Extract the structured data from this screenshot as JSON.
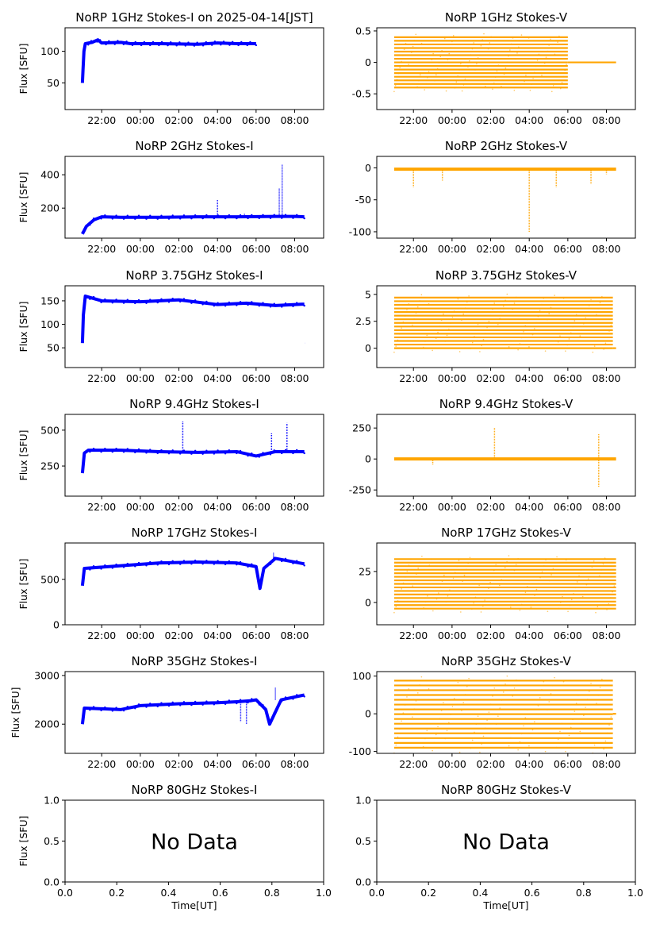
{
  "figure": {
    "colors": {
      "stokes_i": "#0000ff",
      "stokes_v": "#ffa500",
      "axis": "#000000",
      "background": "#ffffff"
    }
  },
  "chart_data": [
    {
      "type": "scatter",
      "title": "NoRP 1GHz Stokes-I on 2025-04-14[JST]",
      "ylabel": "Flux [SFU]",
      "xlabel": "",
      "series": [
        {
          "color": "#0000ff",
          "x_range": [
            "2025-04-13T21:00",
            "2025-04-14T06:00"
          ],
          "values": [
            [
              0,
              50
            ],
            [
              0.03,
              70
            ],
            [
              0.08,
              100
            ],
            [
              0.15,
              112
            ],
            [
              0.5,
              114
            ],
            [
              0.8,
              118
            ],
            [
              1,
              113
            ],
            [
              2,
              114
            ],
            [
              2.5,
              112
            ],
            [
              4,
              112
            ],
            [
              6,
              111
            ],
            [
              7,
              113
            ],
            [
              8,
              112
            ],
            [
              8.8,
              112
            ],
            [
              9,
              112
            ]
          ]
        }
      ],
      "xlim": [
        "2025-04-13T20:06",
        "2025-04-14T09:30"
      ],
      "ylim": [
        8,
        137
      ],
      "x_ticks": [
        "22:00",
        "00:00",
        "02:00",
        "04:00",
        "06:00",
        "08:00"
      ],
      "y_ticks": [
        50,
        100
      ]
    },
    {
      "type": "scatter",
      "title": "NoRP 1GHz Stokes-V",
      "xlabel": "",
      "series": [
        {
          "color": "#ffa500",
          "x_range": [
            "2025-04-13T21:00",
            "2025-04-14T08:30"
          ],
          "band": {
            "x_end": "2025-04-14T06:00",
            "low": -0.4,
            "high": 0.4,
            "then": 0.0
          }
        }
      ],
      "xlim": [
        "2025-04-13T20:06",
        "2025-04-14T09:30"
      ],
      "ylim": [
        -0.75,
        0.55
      ],
      "x_ticks": [
        "22:00",
        "00:00",
        "02:00",
        "04:00",
        "06:00",
        "08:00"
      ],
      "y_ticks": [
        0.5,
        0.0,
        -0.5
      ]
    },
    {
      "type": "scatter",
      "title": "NoRP 2GHz Stokes-I",
      "ylabel": "Flux [SFU]",
      "xlabel": "",
      "series": [
        {
          "color": "#0000ff",
          "x_range": [
            "2025-04-13T21:00",
            "2025-04-14T08:30"
          ],
          "values": [
            [
              0,
              45
            ],
            [
              0.2,
              90
            ],
            [
              0.6,
              130
            ],
            [
              1,
              148
            ],
            [
              2,
              145
            ],
            [
              4,
              145
            ],
            [
              6,
              148
            ],
            [
              8,
              148
            ],
            [
              10,
              150
            ],
            [
              11,
              150
            ],
            [
              11.5,
              148
            ]
          ],
          "spikes": [
            [
              7,
              250
            ],
            [
              8.4,
              170
            ],
            [
              10.2,
              320
            ],
            [
              10.35,
              460
            ]
          ]
        }
      ],
      "xlim": [
        "2025-04-13T20:06",
        "2025-04-14T09:30"
      ],
      "ylim": [
        20,
        510
      ],
      "x_ticks": [
        "22:00",
        "00:00",
        "02:00",
        "04:00",
        "06:00",
        "08:00"
      ],
      "y_ticks": [
        200,
        400
      ]
    },
    {
      "type": "scatter",
      "title": "NoRP 2GHz Stokes-V",
      "xlabel": "",
      "series": [
        {
          "color": "#ffa500",
          "x_range": [
            "2025-04-13T21:00",
            "2025-04-14T08:30"
          ],
          "baseline": -2,
          "spikes": [
            [
              1,
              -30
            ],
            [
              2.5,
              -20
            ],
            [
              7,
              -100
            ],
            [
              8.4,
              -30
            ],
            [
              10.2,
              -25
            ],
            [
              11,
              -10
            ]
          ]
        }
      ],
      "xlim": [
        "2025-04-13T20:06",
        "2025-04-14T09:30"
      ],
      "ylim": [
        -110,
        18
      ],
      "x_ticks": [
        "22:00",
        "00:00",
        "02:00",
        "04:00",
        "06:00",
        "08:00"
      ],
      "y_ticks": [
        0,
        -50,
        -100
      ]
    },
    {
      "type": "scatter",
      "title": "NoRP 3.75GHz Stokes-I",
      "ylabel": "Flux [SFU]",
      "xlabel": "",
      "series": [
        {
          "color": "#0000ff",
          "x_range": [
            "2025-04-13T21:00",
            "2025-04-14T08:30"
          ],
          "values": [
            [
              0,
              60
            ],
            [
              0.05,
              120
            ],
            [
              0.15,
              160
            ],
            [
              1,
              150
            ],
            [
              3,
              148
            ],
            [
              5,
              152
            ],
            [
              7,
              142
            ],
            [
              8.5,
              145
            ],
            [
              10,
              140
            ],
            [
              11.5,
              143
            ]
          ],
          "spikes": [
            [
              11.55,
              60
            ]
          ]
        }
      ],
      "xlim": [
        "2025-04-13T20:06",
        "2025-04-14T09:30"
      ],
      "ylim": [
        8,
        182
      ],
      "x_ticks": [
        "22:00",
        "00:00",
        "02:00",
        "04:00",
        "06:00",
        "08:00"
      ],
      "y_ticks": [
        150,
        100,
        50
      ]
    },
    {
      "type": "scatter",
      "title": "NoRP 3.75GHz Stokes-V",
      "xlabel": "",
      "series": [
        {
          "color": "#ffa500",
          "x_range": [
            "2025-04-13T21:00",
            "2025-04-14T08:30"
          ],
          "band": {
            "x_end": "2025-04-14T08:20",
            "low": 0.0,
            "high": 4.7,
            "then": 0.0
          }
        }
      ],
      "xlim": [
        "2025-04-13T20:06",
        "2025-04-14T09:30"
      ],
      "ylim": [
        -1.8,
        5.8
      ],
      "x_ticks": [
        "22:00",
        "00:00",
        "02:00",
        "04:00",
        "06:00",
        "08:00"
      ],
      "y_ticks": [
        5.0,
        2.5,
        0.0
      ]
    },
    {
      "type": "scatter",
      "title": "NoRP 9.4GHz Stokes-I",
      "ylabel": "Flux [SFU]",
      "xlabel": "",
      "series": [
        {
          "color": "#0000ff",
          "x_range": [
            "2025-04-13T21:00",
            "2025-04-14T08:30"
          ],
          "values": [
            [
              0,
              200
            ],
            [
              0.1,
              340
            ],
            [
              0.3,
              360
            ],
            [
              2,
              360
            ],
            [
              4,
              350
            ],
            [
              6,
              345
            ],
            [
              8,
              350
            ],
            [
              9,
              320
            ],
            [
              10,
              350
            ],
            [
              11.5,
              350
            ]
          ],
          "spikes": [
            [
              5.2,
              560
            ],
            [
              9.8,
              480
            ],
            [
              10.6,
              550
            ]
          ]
        }
      ],
      "xlim": [
        "2025-04-13T20:06",
        "2025-04-14T09:30"
      ],
      "ylim": [
        40,
        610
      ],
      "x_ticks": [
        "22:00",
        "00:00",
        "02:00",
        "04:00",
        "06:00",
        "08:00"
      ],
      "y_ticks": [
        500,
        250
      ]
    },
    {
      "type": "scatter",
      "title": "NoRP 9.4GHz Stokes-V",
      "xlabel": "",
      "series": [
        {
          "color": "#ffa500",
          "x_range": [
            "2025-04-13T21:00",
            "2025-04-14T08:30"
          ],
          "baseline": 0,
          "spikes": [
            [
              2,
              -50
            ],
            [
              5.2,
              250
            ],
            [
              10.6,
              200
            ],
            [
              10.6,
              -230
            ]
          ]
        }
      ],
      "xlim": [
        "2025-04-13T20:06",
        "2025-04-14T09:30"
      ],
      "ylim": [
        -300,
        360
      ],
      "x_ticks": [
        "22:00",
        "00:00",
        "02:00",
        "04:00",
        "06:00",
        "08:00"
      ],
      "y_ticks": [
        250,
        0,
        -250
      ]
    },
    {
      "type": "scatter",
      "title": "NoRP 17GHz Stokes-I",
      "ylabel": "Flux [SFU]",
      "xlabel": "",
      "series": [
        {
          "color": "#0000ff",
          "x_range": [
            "2025-04-13T21:00",
            "2025-04-14T08:30"
          ],
          "values": [
            [
              0,
              430
            ],
            [
              0.1,
              620
            ],
            [
              2,
              650
            ],
            [
              4,
              680
            ],
            [
              6,
              690
            ],
            [
              8,
              680
            ],
            [
              9,
              640
            ],
            [
              9.2,
              400
            ],
            [
              9.4,
              620
            ],
            [
              10,
              730
            ],
            [
              11.5,
              670
            ]
          ],
          "spikes": [
            [
              9.9,
              800
            ]
          ]
        }
      ],
      "xlim": [
        "2025-04-13T20:06",
        "2025-04-14T09:30"
      ],
      "ylim": [
        0,
        900
      ],
      "x_ticks": [
        "22:00",
        "00:00",
        "02:00",
        "04:00",
        "06:00",
        "08:00"
      ],
      "y_ticks": [
        500,
        0
      ]
    },
    {
      "type": "scatter",
      "title": "NoRP 17GHz Stokes-V",
      "xlabel": "",
      "series": [
        {
          "color": "#ffa500",
          "x_range": [
            "2025-04-13T21:00",
            "2025-04-14T08:30"
          ],
          "band": {
            "x_end": "2025-04-14T08:30",
            "low": -5,
            "high": 35,
            "then": 0
          }
        }
      ],
      "xlim": [
        "2025-04-13T20:06",
        "2025-04-14T09:30"
      ],
      "ylim": [
        -18,
        48
      ],
      "x_ticks": [
        "22:00",
        "00:00",
        "02:00",
        "04:00",
        "06:00",
        "08:00"
      ],
      "y_ticks": [
        25,
        0
      ]
    },
    {
      "type": "scatter",
      "title": "NoRP 35GHz Stokes-I",
      "ylabel": "Flux [SFU]",
      "xlabel": "",
      "series": [
        {
          "color": "#0000ff",
          "x_range": [
            "2025-04-13T21:00",
            "2025-04-14T08:30"
          ],
          "values": [
            [
              0,
              2000
            ],
            [
              0.1,
              2330
            ],
            [
              2,
              2300
            ],
            [
              3,
              2380
            ],
            [
              5,
              2420
            ],
            [
              7,
              2440
            ],
            [
              8,
              2460
            ],
            [
              8.7,
              2480
            ],
            [
              9,
              2500
            ],
            [
              9.5,
              2300
            ],
            [
              9.7,
              2000
            ],
            [
              10.3,
              2500
            ],
            [
              11.5,
              2600
            ]
          ],
          "spikes": [
            [
              8.2,
              2050
            ],
            [
              8.5,
              2000
            ],
            [
              10,
              2750
            ]
          ]
        }
      ],
      "xlim": [
        "2025-04-13T20:06",
        "2025-04-14T09:30"
      ],
      "ylim": [
        1400,
        3080
      ],
      "x_ticks": [
        "22:00",
        "00:00",
        "02:00",
        "04:00",
        "06:00",
        "08:00"
      ],
      "y_ticks": [
        3000,
        2000
      ]
    },
    {
      "type": "scatter",
      "title": "NoRP 35GHz Stokes-V",
      "xlabel": "",
      "series": [
        {
          "color": "#ffa500",
          "x_range": [
            "2025-04-13T21:00",
            "2025-04-14T08:30"
          ],
          "band": {
            "x_end": "2025-04-14T08:20",
            "low": -90,
            "high": 88,
            "then": 0
          }
        }
      ],
      "xlim": [
        "2025-04-13T20:06",
        "2025-04-14T09:30"
      ],
      "ylim": [
        -105,
        112
      ],
      "x_ticks": [
        "22:00",
        "00:00",
        "02:00",
        "04:00",
        "06:00",
        "08:00"
      ],
      "y_ticks": [
        100,
        0,
        -100
      ]
    },
    {
      "type": "scatter",
      "title": "NoRP 80GHz Stokes-I",
      "ylabel": "Flux [SFU]",
      "xlabel": "Time[UT]",
      "annotation": "No Data",
      "xlim": [
        0,
        1
      ],
      "ylim": [
        0,
        1
      ],
      "x_ticks": [
        "0.0",
        "0.2",
        "0.4",
        "0.6",
        "0.8",
        "1.0"
      ],
      "y_ticks": [
        "1.0",
        "0.5",
        "0.0"
      ]
    },
    {
      "type": "scatter",
      "title": "NoRP 80GHz Stokes-V",
      "xlabel": "Time[UT]",
      "annotation": "No Data",
      "xlim": [
        0,
        1
      ],
      "ylim": [
        0,
        1
      ],
      "x_ticks": [
        "0.0",
        "0.2",
        "0.4",
        "0.6",
        "0.8",
        "1.0"
      ],
      "y_ticks": [
        "1.0",
        "0.5",
        "0.0"
      ]
    }
  ]
}
